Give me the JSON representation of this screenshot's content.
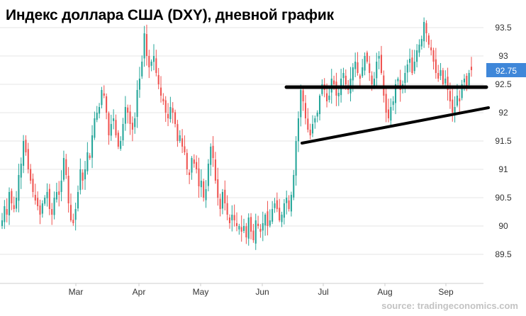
{
  "chart_data": {
    "type": "candlestick",
    "title": "Индекс доллара США (DXY), дневной график",
    "source": "source: tradingeconomics.com",
    "current_value": "92.75",
    "xlabel": "",
    "ylabel": "",
    "ylim": [
      89.3,
      93.8
    ],
    "grid": "horizontal",
    "yticks": [
      "89.5",
      "90",
      "90.5",
      "91",
      "91.5",
      "92",
      "92.5",
      "93",
      "93.5"
    ],
    "xticks": [
      "Mar",
      "Apr",
      "May",
      "Jun",
      "Jul",
      "Aug",
      "Sep"
    ],
    "colors": {
      "up": "#26a69a",
      "down": "#ef5350",
      "grid": "#e6e6e6",
      "current_badge": "#3f87d9",
      "trendline": "#000000"
    },
    "closes": [
      90.1,
      90.35,
      90.2,
      90.6,
      90.4,
      90.3,
      90.5,
      90.9,
      91.1,
      91.5,
      91.3,
      91.0,
      90.8,
      90.6,
      90.45,
      90.35,
      90.2,
      90.4,
      90.5,
      90.6,
      90.3,
      90.2,
      90.5,
      90.6,
      90.55,
      90.8,
      91.2,
      90.9,
      90.4,
      90.1,
      90.05,
      90.3,
      90.6,
      91.0,
      90.8,
      91.0,
      91.3,
      91.2,
      91.6,
      91.9,
      92.0,
      92.1,
      92.4,
      92.3,
      92.0,
      91.6,
      91.8,
      91.9,
      91.6,
      91.4,
      91.5,
      91.8,
      92.1,
      92.0,
      91.8,
      91.7,
      91.9,
      92.4,
      92.6,
      92.9,
      93.4,
      93.0,
      92.8,
      92.9,
      93.0,
      92.7,
      92.5,
      92.3,
      92.2,
      92.0,
      91.9,
      92.1,
      92.0,
      91.8,
      91.5,
      91.6,
      91.4,
      91.3,
      91.0,
      90.9,
      91.2,
      91.1,
      91.0,
      90.7,
      90.8,
      90.5,
      90.65,
      91.1,
      91.4,
      91.2,
      90.8,
      90.5,
      90.3,
      90.6,
      90.4,
      90.2,
      90.05,
      90.2,
      90.1,
      90.0,
      90.0,
      89.9,
      90.0,
      89.8,
      90.15,
      89.9,
      89.75,
      90.1,
      90.0,
      89.9,
      90.05,
      90.2,
      90.0,
      90.1,
      90.3,
      90.4,
      90.3,
      90.1,
      90.2,
      90.4,
      90.5,
      90.3,
      90.55,
      90.9,
      91.5,
      91.9,
      92.4,
      92.2,
      91.9,
      91.7,
      91.6,
      91.8,
      91.9,
      92.0,
      92.3,
      92.5,
      92.4,
      92.2,
      92.3,
      92.6,
      92.5,
      92.3,
      92.35,
      92.6,
      92.7,
      92.5,
      92.4,
      92.6,
      92.8,
      92.9,
      92.7,
      92.6,
      92.8,
      93.0,
      92.9,
      92.7,
      92.5,
      92.6,
      92.9,
      93.0,
      92.7,
      92.3,
      92.0,
      91.9,
      92.1,
      92.2,
      92.5,
      92.6,
      92.4,
      92.5,
      92.7,
      92.85,
      92.95,
      92.7,
      92.9,
      93.1,
      93.2,
      93.3,
      93.6,
      93.4,
      93.2,
      93.1,
      92.9,
      92.7,
      92.6,
      92.75,
      92.5,
      92.6,
      92.4,
      92.2,
      92.0,
      92.1,
      92.3,
      92.2,
      92.5,
      92.6,
      92.45,
      92.7,
      92.75
    ]
  }
}
